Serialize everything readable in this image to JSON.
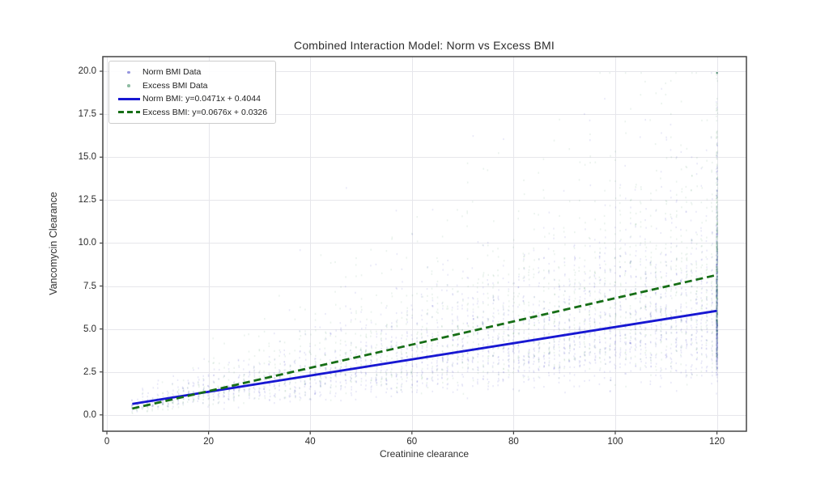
{
  "chart_data": {
    "type": "scatter",
    "title": "Combined Interaction Model: Norm vs Excess BMI",
    "xlabel": "Creatinine clearance",
    "ylabel": "Vancomycin Clearance",
    "xlim": [
      -0.8,
      125.8
    ],
    "ylim": [
      -0.95,
      20.85
    ],
    "xtick_labels": [
      "0",
      "20",
      "40",
      "60",
      "80",
      "100",
      "120"
    ],
    "ytick_labels": [
      "0.0",
      "2.5",
      "5.0",
      "7.5",
      "10.0",
      "12.5",
      "15.0",
      "17.5",
      "20.0"
    ],
    "grid": true,
    "grid_color": "#e6e6eb",
    "axis_color": "#454545",
    "legend_position": "upper-left",
    "scatter_series": [
      {
        "name": "Norm BMI Data",
        "color": "#2b2bbe",
        "alpha": 0.1,
        "scatter_gen": {
          "x_start": 5,
          "x_end": 120,
          "x_step": 1,
          "mean_slope": 0.0471,
          "mean_intercept": 0.4044,
          "lognormal_sigma": 0.45,
          "max_points_per_column": 34,
          "density_ramp": 1.3,
          "extra_points_at_cap": 380,
          "y_cap": 19.9,
          "seed": 20240501
        }
      },
      {
        "name": "Excess BMI Data",
        "color": "#1e7a46",
        "alpha": 0.09,
        "scatter_gen": {
          "x_start": 5,
          "x_end": 120,
          "x_step": 1,
          "mean_slope": 0.0676,
          "mean_intercept": 0.0326,
          "lognormal_sigma": 0.45,
          "max_points_per_column": 26,
          "density_ramp": 1.3,
          "extra_points_at_cap": 430,
          "y_cap": 19.9,
          "seed": 987654
        }
      }
    ],
    "fit_lines": [
      {
        "label": "Norm BMI: y=0.0471x + 0.4044",
        "slope": 0.0471,
        "intercept": 0.4044,
        "x_start": 5,
        "x_end": 120,
        "color": "#1717d2",
        "style": "solid",
        "width": 2.8,
        "dash": []
      },
      {
        "label": "Excess BMI: y=0.0676x + 0.0326",
        "slope": 0.0676,
        "intercept": 0.0326,
        "x_start": 5,
        "x_end": 120,
        "color": "#166e16",
        "style": "dashed",
        "width": 2.8,
        "dash": [
          9,
          5
        ]
      }
    ],
    "legend": [
      {
        "label": "Norm BMI Data",
        "marker": "dot",
        "color": "#2b2bbe"
      },
      {
        "label": "Excess BMI Data",
        "marker": "dot",
        "color": "#1e7a46"
      },
      {
        "label": "Norm BMI: y=0.0471x + 0.4044",
        "marker": "solid-line",
        "color": "#1717d2"
      },
      {
        "label": "Excess BMI: y=0.0676x + 0.0326",
        "marker": "dashed-line",
        "color": "#166e16"
      }
    ]
  }
}
